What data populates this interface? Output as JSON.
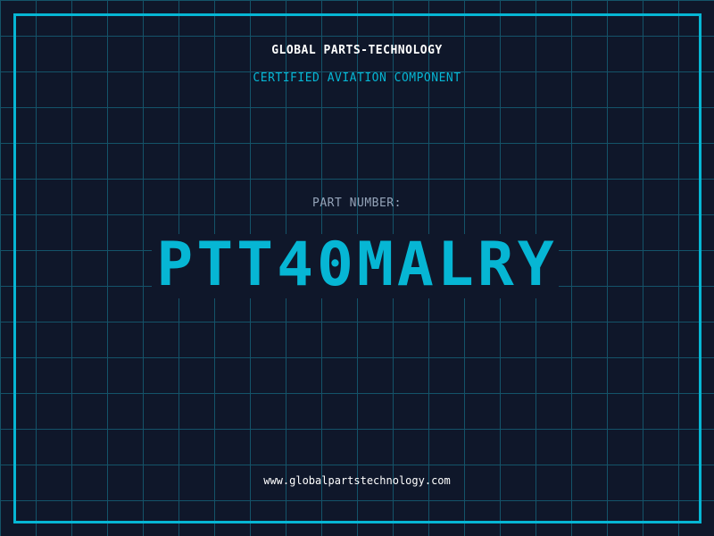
{
  "header": {
    "company": "GLOBAL PARTS-TECHNOLOGY",
    "subtitle": "CERTIFIED AVIATION COMPONENT"
  },
  "part": {
    "label": "PART NUMBER:",
    "number": "PTT40MALRY"
  },
  "footer": {
    "url": "www.globalpartstechnology.com"
  },
  "colors": {
    "background": "#0f172a",
    "accent": "#06b6d4",
    "grid": "#155e75",
    "label": "#94a3b8"
  }
}
